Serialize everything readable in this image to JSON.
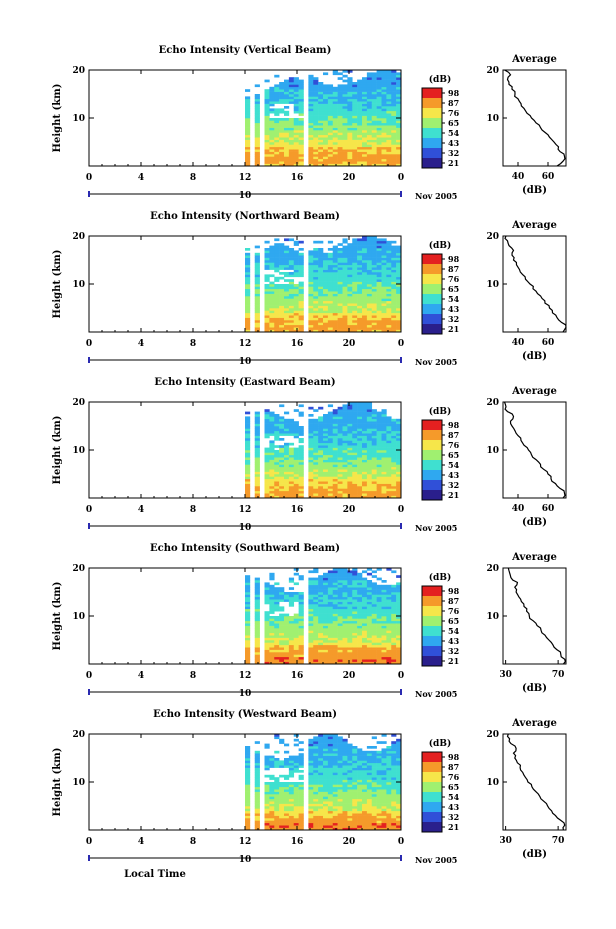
{
  "chart_data": {
    "type": "heatmap",
    "xlabel": "Local Time",
    "date_label": "Nov 2005",
    "day_label": "10",
    "x_ticks": [
      "0",
      "4",
      "8",
      "12",
      "16",
      "20",
      "0"
    ],
    "x_range_hours": [
      0,
      24
    ],
    "ylabel": "Height (km)",
    "y_range_km": [
      0,
      20
    ],
    "y_ticks": [
      "20",
      "10"
    ],
    "colorbar": {
      "unit_label": "(dB)",
      "levels": [
        {
          "value": 21,
          "color": "#2a1f8c"
        },
        {
          "value": 32,
          "color": "#3050d8"
        },
        {
          "value": 43,
          "color": "#2fa8f0"
        },
        {
          "value": 54,
          "color": "#3fe0d0"
        },
        {
          "value": 65,
          "color": "#a0f070"
        },
        {
          "value": 76,
          "color": "#f6e64a"
        },
        {
          "value": 87,
          "color": "#f59a2a"
        },
        {
          "value": 98,
          "color": "#e42020"
        }
      ]
    },
    "panels": [
      {
        "title": "Echo Intensity (Vertical Beam)",
        "colorbar_ticks": [
          "98",
          "87",
          "76",
          "65",
          "54",
          "43",
          "32",
          "21"
        ],
        "profile": {
          "title": "Average",
          "xlabel": "(dB)",
          "x_ticks": [
            "40",
            "60"
          ],
          "x_range": [
            30,
            72
          ],
          "height_km": [
            0,
            1,
            2,
            3,
            4,
            5,
            6,
            7,
            8,
            9,
            10,
            11,
            12,
            13,
            14,
            15,
            16,
            17,
            18,
            19,
            20
          ],
          "db": [
            66,
            70,
            71,
            68,
            67,
            64,
            61,
            58,
            55,
            52,
            49,
            46,
            44,
            42,
            40,
            38,
            36,
            34,
            33,
            35,
            31
          ]
        }
      },
      {
        "title": "Echo Intensity (Northward Beam)",
        "colorbar_ticks": [
          "98",
          "87",
          "76",
          "65",
          "54",
          "43",
          "32",
          "21"
        ],
        "profile": {
          "title": "Average",
          "xlabel": "(dB)",
          "x_ticks": [
            "40",
            "60"
          ],
          "x_range": [
            30,
            72
          ],
          "height_km": [
            0,
            1,
            2,
            3,
            4,
            5,
            6,
            7,
            8,
            9,
            10,
            11,
            12,
            13,
            14,
            15,
            16,
            17,
            18,
            19,
            20
          ],
          "db": [
            70,
            72,
            69,
            66,
            63,
            61,
            58,
            56,
            53,
            50,
            48,
            45,
            43,
            41,
            39,
            37,
            36,
            37,
            34,
            33,
            32
          ]
        }
      },
      {
        "title": "Echo Intensity (Eastward Beam)",
        "colorbar_ticks": [
          "98",
          "87",
          "76",
          "65",
          "54",
          "43",
          "32",
          "21"
        ],
        "profile": {
          "title": "Average",
          "xlabel": "(dB)",
          "x_ticks": [
            "40",
            "60"
          ],
          "x_range": [
            30,
            72
          ],
          "height_km": [
            0,
            1,
            2,
            3,
            4,
            5,
            6,
            7,
            8,
            9,
            10,
            11,
            12,
            13,
            14,
            15,
            16,
            17,
            18,
            19,
            20
          ],
          "db": [
            70,
            71,
            68,
            65,
            62,
            60,
            57,
            55,
            52,
            49,
            47,
            44,
            42,
            40,
            38,
            36,
            35,
            37,
            33,
            32,
            31
          ]
        }
      },
      {
        "title": "Echo Intensity (Southward Beam)",
        "colorbar_ticks": [
          "98",
          "87",
          "76",
          "65",
          "54",
          "43",
          "32",
          "21"
        ],
        "profile": {
          "title": "Average",
          "xlabel": "(dB)",
          "x_ticks": [
            "30",
            "70"
          ],
          "x_range": [
            28,
            76
          ],
          "height_km": [
            0,
            1,
            2,
            3,
            4,
            5,
            6,
            7,
            8,
            9,
            10,
            11,
            12,
            13,
            14,
            15,
            16,
            17,
            18,
            19,
            20
          ],
          "db": [
            74,
            75,
            72,
            69,
            66,
            63,
            60,
            57,
            54,
            51,
            48,
            46,
            44,
            42,
            40,
            38,
            37,
            39,
            34,
            33,
            32
          ]
        }
      },
      {
        "title": "Echo Intensity (Westward Beam)",
        "colorbar_ticks": [
          "98",
          "87",
          "76",
          "65",
          "54",
          "43",
          "32",
          "21"
        ],
        "profile": {
          "title": "Average",
          "xlabel": "(dB)",
          "x_ticks": [
            "30",
            "70"
          ],
          "x_range": [
            28,
            76
          ],
          "height_km": [
            0,
            1,
            2,
            3,
            4,
            5,
            6,
            7,
            8,
            9,
            10,
            11,
            12,
            13,
            14,
            15,
            16,
            17,
            18,
            19,
            20
          ],
          "db": [
            74,
            75,
            72,
            68,
            65,
            62,
            59,
            56,
            53,
            50,
            47,
            45,
            43,
            41,
            39,
            37,
            36,
            38,
            34,
            33,
            32
          ]
        }
      }
    ],
    "data_gaps_hours": [
      [
        0,
        12.0
      ],
      [
        12.35,
        12.8
      ],
      [
        13.1,
        13.4
      ],
      [
        16.6,
        17.0
      ]
    ]
  }
}
